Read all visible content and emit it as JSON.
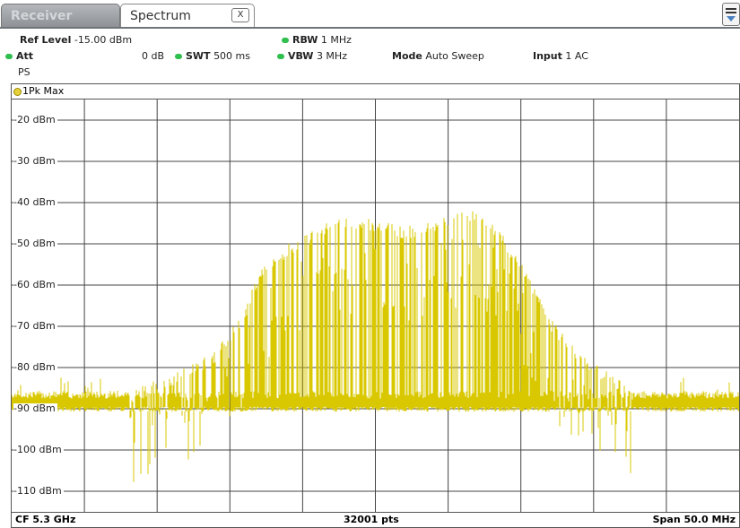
{
  "tabs": {
    "receiver_label": "Receiver",
    "spectrum_label": "Spectrum",
    "close_glyph": "X"
  },
  "menu_icon": "menu-dropdown-icon",
  "settings": {
    "ref_level_label": "Ref Level",
    "ref_level_value": "-15.00 dBm",
    "att_label": "Att",
    "att_value": "0 dB",
    "ps_label": "PS",
    "swt_label": "SWT",
    "swt_value": "500 ms",
    "rbw_label": "RBW",
    "rbw_value": "1 MHz",
    "vbw_label": "VBW",
    "vbw_value": "3 MHz",
    "mode_label": "Mode",
    "mode_value": "Auto Sweep",
    "input_label": "Input",
    "input_value": "1 AC"
  },
  "trace": {
    "label": "1Pk Max",
    "color": "#d9c800"
  },
  "y_axis_labels": [
    "-20 dBm",
    "-30 dBm",
    "-40 dBm",
    "-50 dBm",
    "-60 dBm",
    "-70 dBm",
    "-80 dBm",
    "-90 dBm",
    "-100 dBm",
    "-110 dBm"
  ],
  "footer": {
    "center_freq": "CF 5.3 GHz",
    "points": "32001 pts",
    "span": "Span 50.0 MHz"
  },
  "colors": {
    "grid": "#444444",
    "trace": "#d9c800",
    "status_dot": "#2fbf4e"
  },
  "chart_data": {
    "type": "line",
    "xlabel": "",
    "ylabel": "",
    "ylim": [
      -115,
      -15
    ],
    "xlim": [
      5275,
      5325
    ],
    "series": [
      {
        "name": "1Pk Max",
        "x": [
          5275,
          5280,
          5283,
          5285,
          5287,
          5289,
          5291,
          5292,
          5294,
          5296,
          5298,
          5300,
          5302,
          5304,
          5305,
          5306,
          5307,
          5308,
          5310,
          5312,
          5314,
          5316,
          5318,
          5320,
          5325
        ],
        "values": [
          -89,
          -89,
          -86,
          -83,
          -80,
          -76,
          -66,
          -56,
          -50,
          -46,
          -43,
          -44,
          -46,
          -44,
          -43,
          -42,
          -42,
          -44,
          -54,
          -68,
          -76,
          -81,
          -86,
          -89,
          -89
        ]
      }
    ]
  }
}
